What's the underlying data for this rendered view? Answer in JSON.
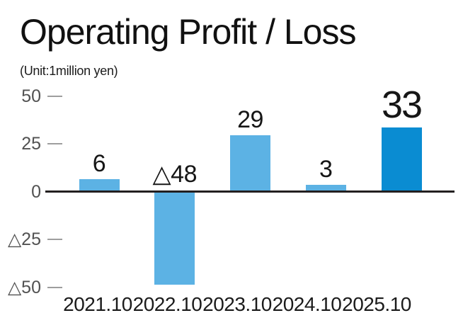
{
  "chart_data": {
    "type": "bar",
    "title": "Operating Profit / Loss",
    "unit_label": "(Unit:1million yen)",
    "categories": [
      "2021.10",
      "2022.10",
      "2023.10",
      "2024.10",
      "2025.10"
    ],
    "values": [
      6,
      -48,
      29,
      3,
      33
    ],
    "value_labels": [
      "6",
      "△48",
      "29",
      "3",
      "33"
    ],
    "ylim": [
      -50,
      50
    ],
    "yticks": [
      {
        "value": 50,
        "label": "50"
      },
      {
        "value": 25,
        "label": "25"
      },
      {
        "value": 0,
        "label": "0"
      },
      {
        "value": -25,
        "label": "△25"
      },
      {
        "value": -50,
        "label": "△50"
      }
    ],
    "grid": false,
    "legend": false,
    "highlight_index": 4,
    "colors": {
      "bar": "#5cb2e4",
      "highlight_bar": "#0a8cd2",
      "axis_line": "#231f20",
      "tick": "#9e9e9e",
      "axis_text": "#525252",
      "value_text": "#161616"
    }
  }
}
